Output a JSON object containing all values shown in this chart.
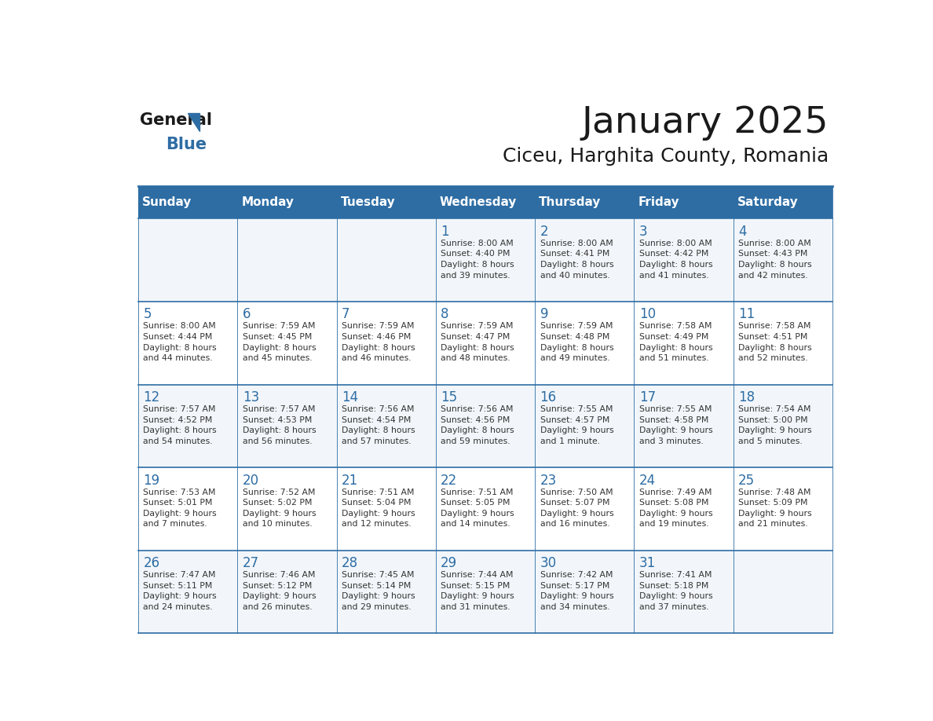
{
  "title": "January 2025",
  "subtitle": "Ciceu, Harghita County, Romania",
  "header_bg": "#2E6DA4",
  "header_text_color": "#FFFFFF",
  "grid_line_color": "#2E6DA4",
  "day_number_color": "#2E6DA4",
  "text_color": "#333333",
  "weekdays": [
    "Sunday",
    "Monday",
    "Tuesday",
    "Wednesday",
    "Thursday",
    "Friday",
    "Saturday"
  ],
  "calendar_data": [
    [
      {
        "day": "",
        "info": ""
      },
      {
        "day": "",
        "info": ""
      },
      {
        "day": "",
        "info": ""
      },
      {
        "day": "1",
        "info": "Sunrise: 8:00 AM\nSunset: 4:40 PM\nDaylight: 8 hours\nand 39 minutes."
      },
      {
        "day": "2",
        "info": "Sunrise: 8:00 AM\nSunset: 4:41 PM\nDaylight: 8 hours\nand 40 minutes."
      },
      {
        "day": "3",
        "info": "Sunrise: 8:00 AM\nSunset: 4:42 PM\nDaylight: 8 hours\nand 41 minutes."
      },
      {
        "day": "4",
        "info": "Sunrise: 8:00 AM\nSunset: 4:43 PM\nDaylight: 8 hours\nand 42 minutes."
      }
    ],
    [
      {
        "day": "5",
        "info": "Sunrise: 8:00 AM\nSunset: 4:44 PM\nDaylight: 8 hours\nand 44 minutes."
      },
      {
        "day": "6",
        "info": "Sunrise: 7:59 AM\nSunset: 4:45 PM\nDaylight: 8 hours\nand 45 minutes."
      },
      {
        "day": "7",
        "info": "Sunrise: 7:59 AM\nSunset: 4:46 PM\nDaylight: 8 hours\nand 46 minutes."
      },
      {
        "day": "8",
        "info": "Sunrise: 7:59 AM\nSunset: 4:47 PM\nDaylight: 8 hours\nand 48 minutes."
      },
      {
        "day": "9",
        "info": "Sunrise: 7:59 AM\nSunset: 4:48 PM\nDaylight: 8 hours\nand 49 minutes."
      },
      {
        "day": "10",
        "info": "Sunrise: 7:58 AM\nSunset: 4:49 PM\nDaylight: 8 hours\nand 51 minutes."
      },
      {
        "day": "11",
        "info": "Sunrise: 7:58 AM\nSunset: 4:51 PM\nDaylight: 8 hours\nand 52 minutes."
      }
    ],
    [
      {
        "day": "12",
        "info": "Sunrise: 7:57 AM\nSunset: 4:52 PM\nDaylight: 8 hours\nand 54 minutes."
      },
      {
        "day": "13",
        "info": "Sunrise: 7:57 AM\nSunset: 4:53 PM\nDaylight: 8 hours\nand 56 minutes."
      },
      {
        "day": "14",
        "info": "Sunrise: 7:56 AM\nSunset: 4:54 PM\nDaylight: 8 hours\nand 57 minutes."
      },
      {
        "day": "15",
        "info": "Sunrise: 7:56 AM\nSunset: 4:56 PM\nDaylight: 8 hours\nand 59 minutes."
      },
      {
        "day": "16",
        "info": "Sunrise: 7:55 AM\nSunset: 4:57 PM\nDaylight: 9 hours\nand 1 minute."
      },
      {
        "day": "17",
        "info": "Sunrise: 7:55 AM\nSunset: 4:58 PM\nDaylight: 9 hours\nand 3 minutes."
      },
      {
        "day": "18",
        "info": "Sunrise: 7:54 AM\nSunset: 5:00 PM\nDaylight: 9 hours\nand 5 minutes."
      }
    ],
    [
      {
        "day": "19",
        "info": "Sunrise: 7:53 AM\nSunset: 5:01 PM\nDaylight: 9 hours\nand 7 minutes."
      },
      {
        "day": "20",
        "info": "Sunrise: 7:52 AM\nSunset: 5:02 PM\nDaylight: 9 hours\nand 10 minutes."
      },
      {
        "day": "21",
        "info": "Sunrise: 7:51 AM\nSunset: 5:04 PM\nDaylight: 9 hours\nand 12 minutes."
      },
      {
        "day": "22",
        "info": "Sunrise: 7:51 AM\nSunset: 5:05 PM\nDaylight: 9 hours\nand 14 minutes."
      },
      {
        "day": "23",
        "info": "Sunrise: 7:50 AM\nSunset: 5:07 PM\nDaylight: 9 hours\nand 16 minutes."
      },
      {
        "day": "24",
        "info": "Sunrise: 7:49 AM\nSunset: 5:08 PM\nDaylight: 9 hours\nand 19 minutes."
      },
      {
        "day": "25",
        "info": "Sunrise: 7:48 AM\nSunset: 5:09 PM\nDaylight: 9 hours\nand 21 minutes."
      }
    ],
    [
      {
        "day": "26",
        "info": "Sunrise: 7:47 AM\nSunset: 5:11 PM\nDaylight: 9 hours\nand 24 minutes."
      },
      {
        "day": "27",
        "info": "Sunrise: 7:46 AM\nSunset: 5:12 PM\nDaylight: 9 hours\nand 26 minutes."
      },
      {
        "day": "28",
        "info": "Sunrise: 7:45 AM\nSunset: 5:14 PM\nDaylight: 9 hours\nand 29 minutes."
      },
      {
        "day": "29",
        "info": "Sunrise: 7:44 AM\nSunset: 5:15 PM\nDaylight: 9 hours\nand 31 minutes."
      },
      {
        "day": "30",
        "info": "Sunrise: 7:42 AM\nSunset: 5:17 PM\nDaylight: 9 hours\nand 34 minutes."
      },
      {
        "day": "31",
        "info": "Sunrise: 7:41 AM\nSunset: 5:18 PM\nDaylight: 9 hours\nand 37 minutes."
      },
      {
        "day": "",
        "info": ""
      }
    ]
  ]
}
